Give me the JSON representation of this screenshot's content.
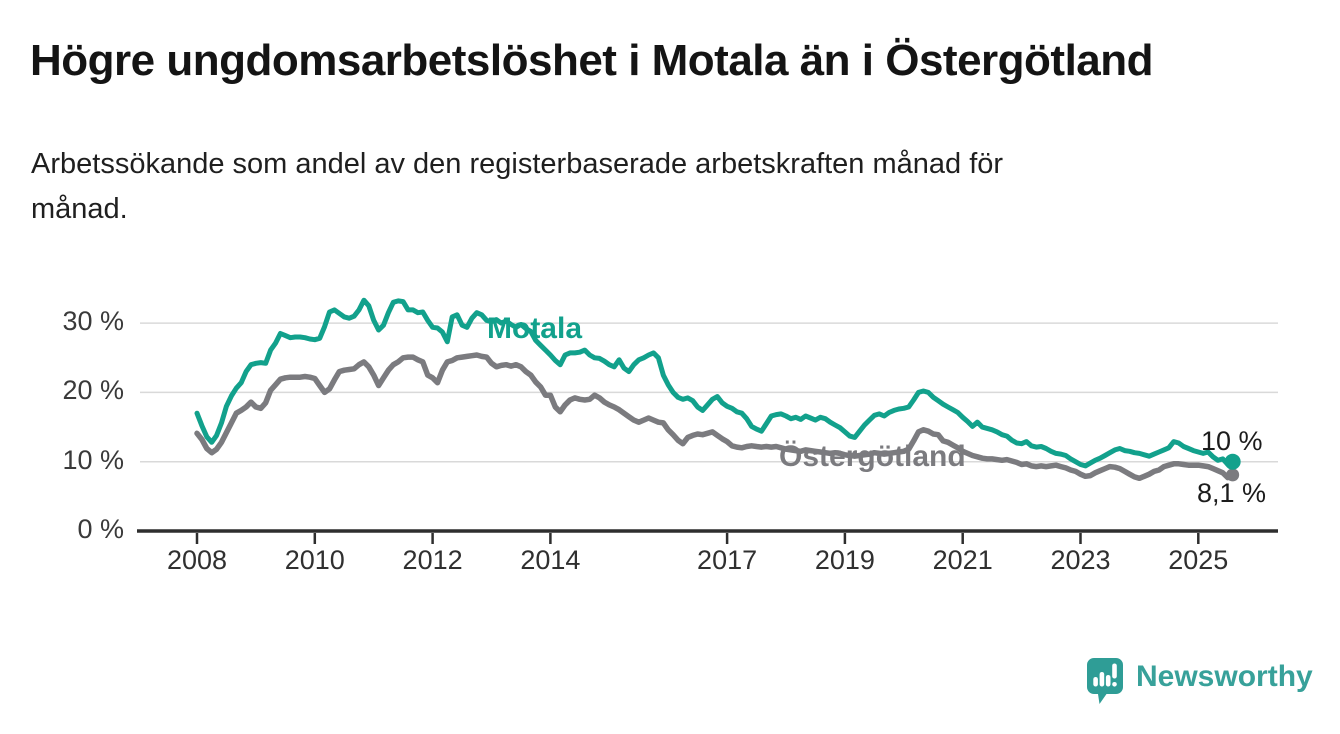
{
  "header": {
    "title": "Högre ungdomsarbetslöshet i Motala än i Östergötland",
    "subtitle_line1": "Arbetssökande som andel av den registerbaserade arbetskraften månad för",
    "subtitle_line2": "månad."
  },
  "chart_data": {
    "type": "line",
    "title": "Högre ungdomsarbetslöshet i Motala än i Östergötland",
    "x_unit": "month",
    "x_start": "2008-01",
    "x_end": "2025-08",
    "ylim": [
      0,
      35
    ],
    "grid": "horizontal",
    "legend_position": "inline-labels",
    "y_ticks": [
      {
        "label": "0 %",
        "value": 0
      },
      {
        "label": "10 %",
        "value": 10
      },
      {
        "label": "20 %",
        "value": 20
      },
      {
        "label": "30 %",
        "value": 30
      }
    ],
    "x_ticks": [
      {
        "label": "2008",
        "year": 2008
      },
      {
        "label": "2010",
        "year": 2010
      },
      {
        "label": "2012",
        "year": 2012
      },
      {
        "label": "2014",
        "year": 2014
      },
      {
        "label": "2017",
        "year": 2017
      },
      {
        "label": "2019",
        "year": 2019
      },
      {
        "label": "2021",
        "year": 2021
      },
      {
        "label": "2023",
        "year": 2023
      },
      {
        "label": "2025",
        "year": 2025
      }
    ],
    "series": [
      {
        "name": "Motala",
        "color": "#12a18c",
        "end_label": "10 %",
        "end_value": 10.0,
        "values": [
          17.0,
          15.2,
          13.6,
          12.8,
          13.8,
          15.6,
          18.0,
          19.5,
          20.6,
          21.4,
          23.0,
          24.0,
          24.2,
          24.3,
          24.2,
          26.1,
          27.1,
          28.5,
          28.2,
          27.9,
          28.0,
          28.0,
          27.9,
          27.7,
          27.6,
          27.8,
          29.5,
          31.6,
          31.9,
          31.4,
          30.9,
          30.7,
          31.0,
          31.9,
          33.3,
          32.5,
          30.4,
          29.0,
          29.7,
          31.5,
          33.0,
          33.2,
          33.1,
          31.9,
          31.9,
          31.5,
          31.6,
          30.4,
          29.4,
          29.3,
          28.7,
          27.3,
          30.9,
          31.2,
          29.7,
          29.4,
          30.7,
          31.5,
          31.2,
          30.4,
          30.2,
          30.5,
          30.0,
          30.3,
          29.8,
          29.4,
          29.8,
          29.2,
          28.8,
          27.5,
          26.8,
          26.1,
          25.4,
          24.6,
          24.0,
          25.4,
          25.7,
          25.7,
          25.8,
          26.1,
          25.4,
          25.0,
          24.9,
          24.5,
          24.0,
          23.7,
          24.7,
          23.5,
          23.0,
          24.0,
          24.7,
          25.0,
          25.4,
          25.7,
          25.0,
          22.5,
          21.1,
          20.0,
          19.3,
          19.0,
          19.2,
          18.8,
          17.9,
          17.4,
          18.2,
          19.0,
          19.4,
          18.5,
          18.0,
          17.7,
          17.2,
          17.0,
          16.2,
          15.1,
          14.7,
          14.4,
          15.5,
          16.6,
          16.8,
          16.9,
          16.6,
          16.2,
          16.4,
          16.1,
          16.6,
          16.3,
          16.0,
          16.4,
          16.2,
          15.7,
          15.3,
          14.9,
          14.3,
          13.7,
          13.5,
          14.4,
          15.3,
          16.0,
          16.7,
          16.9,
          16.6,
          17.1,
          17.4,
          17.6,
          17.7,
          17.9,
          18.9,
          20.0,
          20.2,
          20.0,
          19.3,
          18.8,
          18.3,
          17.9,
          17.5,
          17.1,
          16.4,
          15.8,
          15.1,
          15.7,
          15.0,
          14.8,
          14.6,
          14.3,
          13.9,
          13.7,
          13.1,
          12.7,
          12.6,
          12.9,
          12.3,
          12.1,
          12.2,
          11.9,
          11.5,
          11.2,
          11.1,
          10.9,
          10.4,
          10.0,
          9.6,
          9.4,
          9.8,
          10.2,
          10.5,
          10.9,
          11.3,
          11.7,
          11.9,
          11.6,
          11.5,
          11.3,
          11.2,
          11.0,
          10.8,
          11.1,
          11.4,
          11.7,
          12.0,
          12.9,
          12.7,
          12.2,
          11.9,
          11.6,
          11.4,
          11.2,
          11.4,
          10.7,
          10.2,
          10.4,
          9.6,
          10.0
        ]
      },
      {
        "name": "Östergötland",
        "color": "#7b7b7f",
        "end_label": "8,1 %",
        "end_value": 8.1,
        "values": [
          14.1,
          13.2,
          11.9,
          11.3,
          11.8,
          12.8,
          14.2,
          15.6,
          17.0,
          17.4,
          17.9,
          18.6,
          17.9,
          17.7,
          18.5,
          20.3,
          21.1,
          21.9,
          22.1,
          22.2,
          22.2,
          22.2,
          22.3,
          22.2,
          22.0,
          21.0,
          20.0,
          20.5,
          21.8,
          23.0,
          23.2,
          23.3,
          23.4,
          24.0,
          24.4,
          23.7,
          22.5,
          21.0,
          22.1,
          23.2,
          24.0,
          24.4,
          25.0,
          25.1,
          25.1,
          24.7,
          24.4,
          22.5,
          22.1,
          21.4,
          23.2,
          24.4,
          24.6,
          25.0,
          25.1,
          25.2,
          25.3,
          25.4,
          25.2,
          25.1,
          24.2,
          23.7,
          23.9,
          24.0,
          23.8,
          24.0,
          23.7,
          23.0,
          22.5,
          21.5,
          20.8,
          19.6,
          19.6,
          17.9,
          17.2,
          18.2,
          18.9,
          19.2,
          19.0,
          18.9,
          19.0,
          19.6,
          19.2,
          18.6,
          18.2,
          17.9,
          17.5,
          17.0,
          16.5,
          16.0,
          15.7,
          16.0,
          16.3,
          16.0,
          15.7,
          15.6,
          14.6,
          13.9,
          13.1,
          12.6,
          13.5,
          13.8,
          14.0,
          13.9,
          14.1,
          14.3,
          13.8,
          13.3,
          12.9,
          12.3,
          12.1,
          12.0,
          12.2,
          12.3,
          12.2,
          12.1,
          12.2,
          12.1,
          12.2,
          12.0,
          11.8,
          11.7,
          11.6,
          11.5,
          11.7,
          11.6,
          11.5,
          11.4,
          11.3,
          11.2,
          11.3,
          11.2,
          11.0,
          10.9,
          10.8,
          10.9,
          11.0,
          11.1,
          11.3,
          11.2,
          11.1,
          11.2,
          11.3,
          11.4,
          11.5,
          11.8,
          13.0,
          14.3,
          14.6,
          14.4,
          14.0,
          13.9,
          13.0,
          12.8,
          12.4,
          12.0,
          11.5,
          11.2,
          10.9,
          10.7,
          10.5,
          10.4,
          10.4,
          10.3,
          10.2,
          10.3,
          10.1,
          9.9,
          9.6,
          9.7,
          9.4,
          9.3,
          9.4,
          9.3,
          9.4,
          9.5,
          9.3,
          9.1,
          8.8,
          8.6,
          8.2,
          7.9,
          8.0,
          8.4,
          8.7,
          9.0,
          9.3,
          9.2,
          9.0,
          8.6,
          8.2,
          7.8,
          7.6,
          7.9,
          8.2,
          8.6,
          8.8,
          9.3,
          9.5,
          9.7,
          9.7,
          9.6,
          9.5,
          9.5,
          9.5,
          9.4,
          9.3,
          9.0,
          8.7,
          8.4,
          7.7,
          8.1
        ]
      }
    ]
  },
  "footer": {
    "brand": "Newsworthy",
    "brand_color": "#38a19a",
    "logo_fill": "#2f9d96"
  }
}
